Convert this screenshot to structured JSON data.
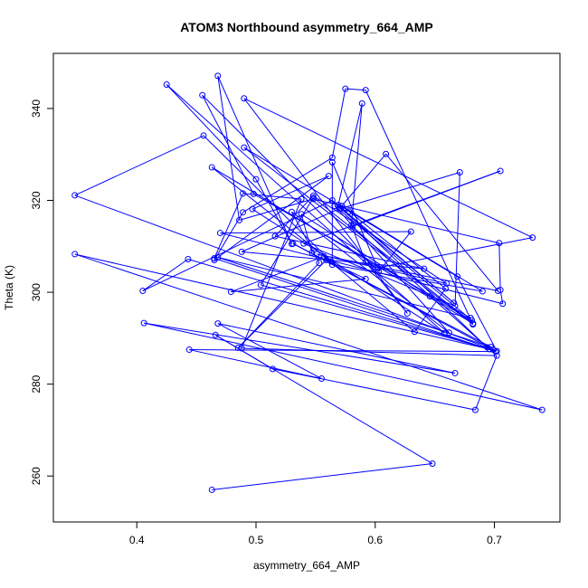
{
  "chart_data": {
    "type": "line",
    "title": "ATOM3 Northbound asymmetry_664_AMP",
    "xlabel": "asymmetry_664_AMP",
    "ylabel": "Theta (K)",
    "xlim": [
      0.33,
      0.755
    ],
    "ylim": [
      250,
      352
    ],
    "xticks": [
      0.4,
      0.5,
      0.6,
      0.7
    ],
    "yticks": [
      260,
      280,
      300,
      320,
      340
    ],
    "xtick_labels": [
      "0.4",
      "0.5",
      "0.6",
      "0.7"
    ],
    "ytick_labels": [
      "260",
      "280",
      "300",
      "320",
      "340"
    ],
    "series_color": "#0000ff",
    "grid": false,
    "points": [
      [
        0.463,
        257.0
      ],
      [
        0.648,
        262.7
      ],
      [
        0.466,
        290.7
      ],
      [
        0.514,
        283.3
      ],
      [
        0.684,
        274.4
      ],
      [
        0.702,
        286.2
      ],
      [
        0.488,
        287.8
      ],
      [
        0.538,
        320.3
      ],
      [
        0.489,
        321.5
      ],
      [
        0.465,
        307.4
      ],
      [
        0.701,
        287.1
      ],
      [
        0.444,
        287.5
      ],
      [
        0.555,
        281.2
      ],
      [
        0.468,
        293.2
      ],
      [
        0.667,
        282.4
      ],
      [
        0.406,
        293.3
      ],
      [
        0.74,
        274.4
      ],
      [
        0.348,
        308.3
      ],
      [
        0.696,
        287.6
      ],
      [
        0.504,
        301.6
      ],
      [
        0.548,
        320.6
      ],
      [
        0.682,
        293.2
      ],
      [
        0.463,
        327.2
      ],
      [
        0.563,
        306.7
      ],
      [
        0.456,
        334.1
      ],
      [
        0.348,
        321.1
      ],
      [
        0.699,
        287.5
      ],
      [
        0.531,
        310.6
      ],
      [
        0.697,
        288.1
      ],
      [
        0.468,
        307.6
      ],
      [
        0.68,
        294.4
      ],
      [
        0.498,
        321.4
      ],
      [
        0.455,
        342.9
      ],
      [
        0.603,
        304.5
      ],
      [
        0.63,
        313.2
      ],
      [
        0.47,
        312.9
      ],
      [
        0.707,
        297.5
      ],
      [
        0.705,
        300.5
      ],
      [
        0.704,
        310.7
      ],
      [
        0.548,
        320.3
      ],
      [
        0.486,
        315.7
      ],
      [
        0.468,
        347.1
      ],
      [
        0.53,
        310.5
      ],
      [
        0.5,
        324.6
      ],
      [
        0.425,
        345.2
      ],
      [
        0.658,
        291.1
      ],
      [
        0.497,
        318.1
      ],
      [
        0.561,
        325.3
      ],
      [
        0.465,
        307.0
      ],
      [
        0.489,
        317.4
      ],
      [
        0.564,
        329.3
      ],
      [
        0.575,
        344.3
      ],
      [
        0.592,
        344.0
      ],
      [
        0.682,
        293.0
      ],
      [
        0.49,
        331.5
      ],
      [
        0.669,
        303.4
      ],
      [
        0.702,
        287.2
      ],
      [
        0.443,
        307.2
      ],
      [
        0.405,
        300.3
      ],
      [
        0.564,
        320.0
      ],
      [
        0.666,
        297.7
      ],
      [
        0.571,
        318.2
      ],
      [
        0.671,
        326.1
      ],
      [
        0.667,
        297.0
      ],
      [
        0.54,
        310.6
      ],
      [
        0.705,
        326.4
      ],
      [
        0.581,
        314.3
      ],
      [
        0.694,
        288.0
      ],
      [
        0.569,
        319.0
      ],
      [
        0.589,
        341.1
      ],
      [
        0.58,
        314.6
      ],
      [
        0.592,
        306.6
      ],
      [
        0.627,
        295.4
      ],
      [
        0.49,
        342.2
      ],
      [
        0.732,
        311.9
      ],
      [
        0.602,
        305.3
      ],
      [
        0.564,
        328.3
      ],
      [
        0.564,
        306.0
      ],
      [
        0.69,
        300.2
      ],
      [
        0.572,
        318.8
      ],
      [
        0.609,
        330.1
      ],
      [
        0.703,
        300.3
      ],
      [
        0.551,
        308.3
      ],
      [
        0.66,
        301.9
      ],
      [
        0.548,
        321.0
      ],
      [
        0.516,
        312.2
      ],
      [
        0.641,
        305.1
      ],
      [
        0.488,
        308.8
      ],
      [
        0.57,
        318.2
      ],
      [
        0.578,
        317.6
      ],
      [
        0.659,
        300.8
      ],
      [
        0.633,
        291.4
      ],
      [
        0.557,
        307.8
      ],
      [
        0.479,
        300.1
      ],
      [
        0.592,
        302.9
      ],
      [
        0.559,
        307.0
      ],
      [
        0.485,
        287.9
      ],
      [
        0.553,
        306.4
      ],
      [
        0.53,
        317.5
      ],
      [
        0.662,
        291.2
      ],
      [
        0.566,
        318.8
      ],
      [
        0.681,
        293.9
      ],
      [
        0.646,
        299.1
      ],
      [
        0.538,
        317.0
      ],
      [
        0.547,
        308.6
      ]
    ]
  }
}
